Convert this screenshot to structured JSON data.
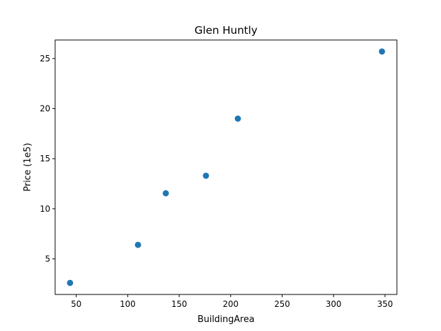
{
  "chart_data": {
    "type": "scatter",
    "title": "Glen Huntly",
    "xlabel": "BuildingArea",
    "ylabel": "Price (1e5)",
    "xlim": [
      29.5,
      361.5
    ],
    "ylim": [
      1.45,
      26.85
    ],
    "xticks": [
      50,
      100,
      150,
      200,
      250,
      300,
      350
    ],
    "yticks": [
      5,
      10,
      15,
      20,
      25
    ],
    "grid": false,
    "legend": "none",
    "series": [
      {
        "color": "#1f77b4",
        "x": [
          44,
          110,
          137,
          176,
          207,
          347
        ],
        "y": [
          2.6,
          6.4,
          11.55,
          13.3,
          19.0,
          25.7
        ]
      }
    ]
  }
}
